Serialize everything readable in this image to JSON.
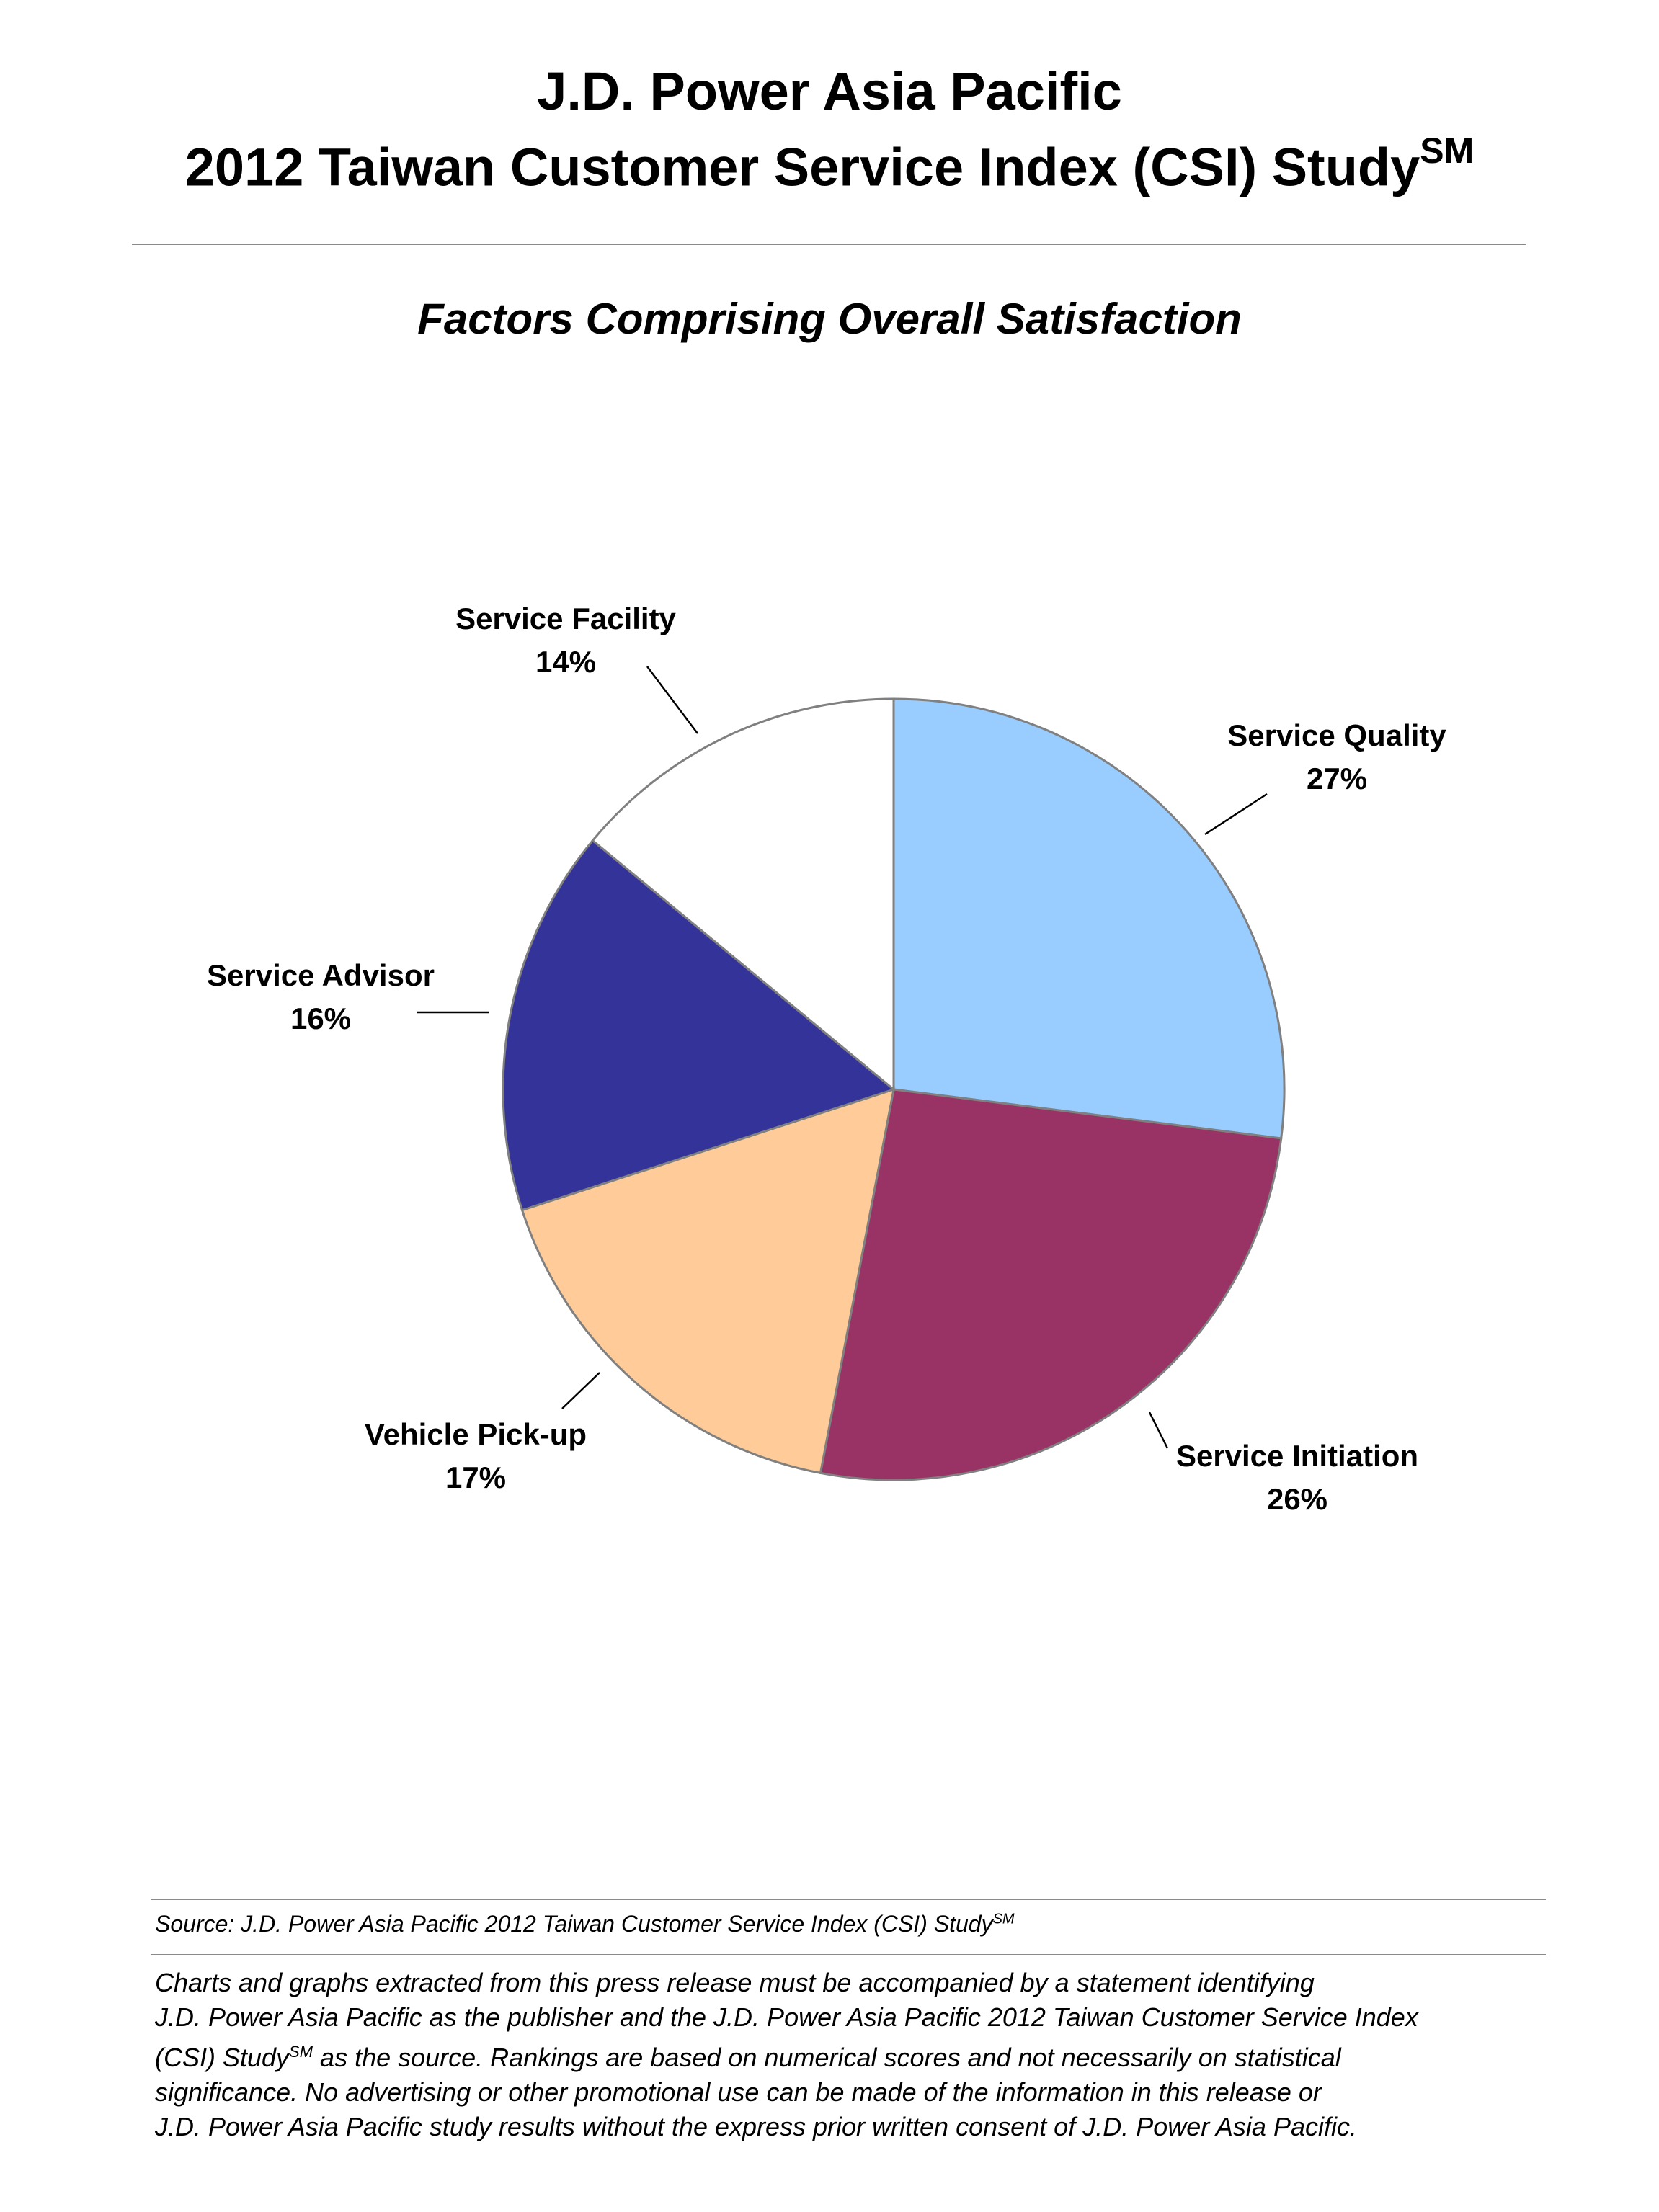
{
  "header": {
    "title_line1": "J.D. Power Asia Pacific",
    "title_line2": "2012 Taiwan Customer Service Index (CSI) Study",
    "title_sup": "SM"
  },
  "subtitle": "Factors Comprising Overall Satisfaction",
  "chart_data": {
    "type": "pie",
    "title": "Factors Comprising Overall Satisfaction",
    "start": "12 o'clock, clockwise",
    "slices": [
      {
        "name": "Service Quality",
        "value": 27,
        "label": "27%",
        "color": "#99ccff"
      },
      {
        "name": "Service Initiation",
        "value": 26,
        "label": "26%",
        "color": "#993366"
      },
      {
        "name": "Vehicle Pick-up",
        "value": 17,
        "label": "17%",
        "color": "#ffcc99"
      },
      {
        "name": "Service Advisor",
        "value": 16,
        "label": "16%",
        "color": "#333399"
      },
      {
        "name": "Service Facility",
        "value": 14,
        "label": "14%",
        "color": "#ffffff"
      }
    ],
    "slice_border_color": "#808080"
  },
  "footer": {
    "source_text": "Source: J.D. Power Asia Pacific 2012 Taiwan Customer Service Index (CSI) Study",
    "source_sup": "SM",
    "disclaimer": {
      "line1": "Charts and graphs extracted from this press release must be accompanied by a statement identifying",
      "line2": "J.D. Power Asia Pacific as the publisher and the J.D. Power Asia Pacific 2012 Taiwan Customer Service Index",
      "line3_a": "(CSI) Study",
      "line3_sup": "SM",
      "line3_b": " as the source. Rankings are based on numerical scores and not necessarily on statistical",
      "line4": "significance. No advertising or other promotional use can be made of the information in this release or",
      "line5": "J.D. Power Asia Pacific study results without the express prior written consent of J.D. Power Asia Pacific."
    }
  }
}
